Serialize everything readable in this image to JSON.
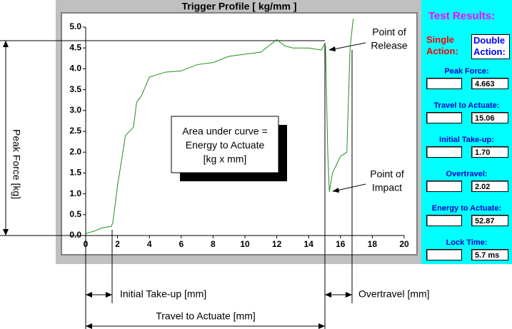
{
  "chart_data": {
    "type": "line",
    "title": "Trigger Profile [ kg/mm ]",
    "x": [
      0,
      0.5,
      1,
      1.6,
      1.7,
      2,
      2.5,
      3,
      3.2,
      3.5,
      4,
      5,
      6,
      7,
      8,
      9,
      10,
      11,
      11.5,
      12,
      12.5,
      13,
      14,
      14.8,
      15,
      15.06,
      15.2,
      15.3,
      15.5,
      16,
      16.4,
      16.6,
      16.8
    ],
    "series": [
      {
        "color": "#1f8f1f",
        "values": [
          0.05,
          0.1,
          0.18,
          0.22,
          0.3,
          1.2,
          2.4,
          2.6,
          3.2,
          3.35,
          3.8,
          3.92,
          3.95,
          4.1,
          4.15,
          4.3,
          4.35,
          4.4,
          4.55,
          4.7,
          4.55,
          4.5,
          4.5,
          4.45,
          4.6,
          4.55,
          2.0,
          1.05,
          1.5,
          1.9,
          2.0,
          4.5,
          5.2
        ]
      }
    ],
    "xlim": [
      0,
      20
    ],
    "xticks": [
      0,
      2,
      4,
      6,
      8,
      10,
      12,
      14,
      16,
      18,
      20
    ],
    "ylim": [
      0,
      5
    ],
    "yticks": [
      {
        "value": 0,
        "label": "0.0"
      },
      0.5,
      {
        "value": 1,
        "label": "1.0"
      },
      1.5,
      {
        "value": 2,
        "label": "2.0"
      },
      2.5,
      {
        "value": 3,
        "label": "3.0"
      },
      3.5,
      {
        "value": 4,
        "label": "4.0"
      },
      4.5,
      {
        "value": 5,
        "label": "5.0"
      }
    ],
    "grid": false,
    "annotations": {
      "area_box": [
        "Area under curve =",
        "Energy to Actuate",
        "[kg x mm]"
      ],
      "release": [
        "Point of",
        "Release"
      ],
      "impact": [
        "Point of",
        "Impact"
      ]
    },
    "dimensions": {
      "peak_force": "Peak Force [kg]",
      "take_up": "Initial Take-up [mm]",
      "overtravel": "Overtravel  [mm]",
      "travel": "Travel to Actuate [mm]"
    }
  },
  "results": {
    "title": "Test Results:",
    "single": [
      "Single",
      "Action:"
    ],
    "double": [
      "Double",
      "Action:"
    ],
    "items": [
      {
        "label": "Peak Force:",
        "value": "4.663"
      },
      {
        "label": "Travel to Actuate:",
        "value": "15.06"
      },
      {
        "label": "Initial Take-up:",
        "value": "1.70"
      },
      {
        "label": "Overtravel:",
        "value": "2.02"
      },
      {
        "label": "Energy to Actuate:",
        "value": "52.87"
      },
      {
        "label": "Lock Time:",
        "value": "5.7 ms"
      }
    ]
  }
}
